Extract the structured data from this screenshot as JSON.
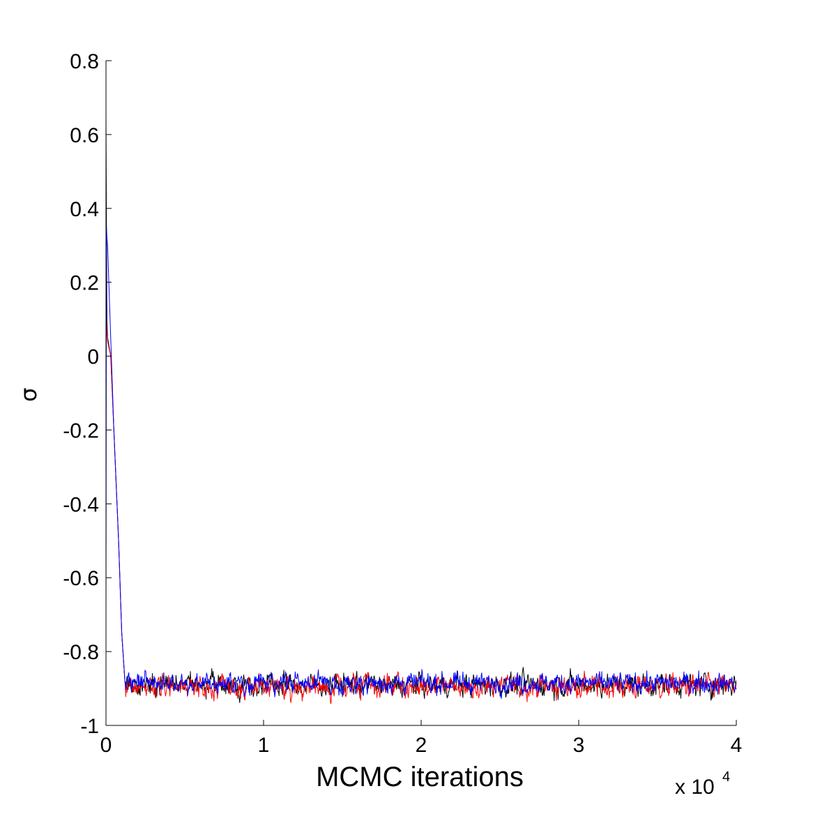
{
  "chart_data": {
    "type": "line",
    "title": "",
    "xlabel": "MCMC iterations",
    "ylabel": "σ",
    "x_multiplier_label": {
      "base": "x 10",
      "exponent": "4"
    },
    "xlim": [
      0,
      4
    ],
    "ylim": [
      -1,
      0.8
    ],
    "xticks": [
      0,
      1,
      2,
      3,
      4
    ],
    "xtick_labels": [
      "0",
      "1",
      "2",
      "3",
      "4"
    ],
    "yticks": [
      -1,
      -0.8,
      -0.6,
      -0.4,
      -0.2,
      0,
      0.2,
      0.4,
      0.6,
      0.8
    ],
    "ytick_labels": [
      "-1",
      "-0.8",
      "-0.6",
      "-0.4",
      "-0.2",
      "0",
      "0.2",
      "0.4",
      "0.6",
      "0.8"
    ],
    "grid": false,
    "legend": "none",
    "x_units": "x 10^4 iterations",
    "series": [
      {
        "color": "#000000",
        "x": [
          0,
          0.003,
          0.006,
          0.01,
          0.03,
          0.05,
          0.08,
          0.1,
          0.12
        ],
        "y": [
          0.65,
          0.35,
          0.1,
          0.05,
          0.0,
          -0.2,
          -0.5,
          -0.75,
          -0.88
        ],
        "stationary_mean": -0.89,
        "stationary_noise": 0.025
      },
      {
        "color": "#ff0000",
        "x": [
          0,
          0.003,
          0.006,
          0.01,
          0.03,
          0.05,
          0.08,
          0.1,
          0.12
        ],
        "y": [
          0.15,
          0.1,
          0.06,
          0.04,
          0.0,
          -0.2,
          -0.5,
          -0.75,
          -0.88
        ],
        "stationary_mean": -0.895,
        "stationary_noise": 0.025
      },
      {
        "color": "#0000ff",
        "x": [
          0,
          0.003,
          0.006,
          0.01,
          0.03,
          0.05,
          0.08,
          0.1,
          0.12
        ],
        "y": [
          -0.7,
          0.35,
          0.32,
          0.3,
          0.05,
          -0.2,
          -0.5,
          -0.75,
          -0.88
        ],
        "stationary_mean": -0.885,
        "stationary_noise": 0.022
      }
    ]
  }
}
